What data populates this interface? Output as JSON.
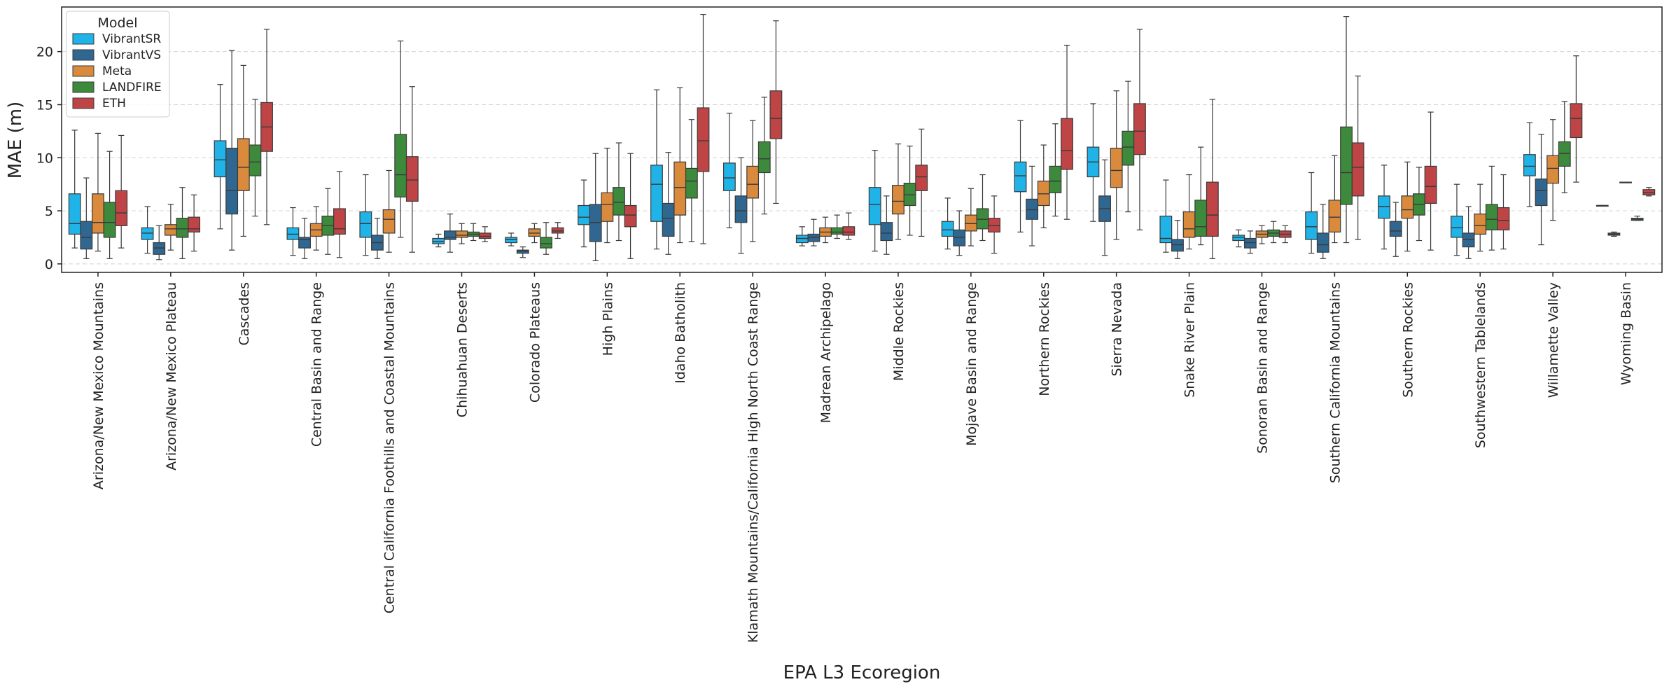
{
  "chart_data": {
    "type": "box",
    "title": "",
    "xlabel": "EPA L3 Ecoregion",
    "ylabel": "MAE (m)",
    "ylim": [
      -0.8,
      24.2
    ],
    "yticks": [
      0,
      5,
      10,
      15,
      20
    ],
    "grid": "horizontal dashed",
    "legend": {
      "title": "Model",
      "position": "top-left"
    },
    "series": [
      {
        "name": "VibrantSR",
        "color": "#1fb3e8"
      },
      {
        "name": "VibrantVS",
        "color": "#2f6791"
      },
      {
        "name": "Meta",
        "color": "#d98a3c"
      },
      {
        "name": "LANDFIRE",
        "color": "#3d8a3c"
      },
      {
        "name": "ETH",
        "color": "#bf4446"
      }
    ],
    "stat_order": [
      "whisker_low",
      "q1",
      "median",
      "q3",
      "whisker_high"
    ],
    "categories": [
      "Arizona/New Mexico Mountains",
      "Arizona/New Mexico Plateau",
      "Cascades",
      "Central Basin and Range",
      "Central California Foothills and Coastal Mountains",
      "Chihuahuan Deserts",
      "Colorado Plateaus",
      "High Plains",
      "Idaho Batholith",
      "Klamath Mountains/California High North Coast Range",
      "Madrean Archipelago",
      "Middle Rockies",
      "Mojave Basin and Range",
      "Northern Rockies",
      "Sierra Nevada",
      "Snake River Plain",
      "Sonoran Basin and Range",
      "Southern California Mountains",
      "Southern Rockies",
      "Southwestern Tablelands",
      "Willamette Valley",
      "Wyoming Basin"
    ],
    "boxes": [
      [
        [
          1.5,
          2.8,
          3.8,
          6.6,
          12.6
        ],
        [
          0.5,
          1.4,
          2.5,
          4.0,
          8.1
        ],
        [
          1.2,
          2.9,
          3.9,
          6.6,
          12.3
        ],
        [
          0.5,
          2.5,
          3.9,
          5.8,
          10.6
        ],
        [
          1.5,
          3.6,
          4.8,
          6.9,
          12.1
        ]
      ],
      [
        [
          1.0,
          2.3,
          2.9,
          3.4,
          5.4
        ],
        [
          0.4,
          0.9,
          1.5,
          2.0,
          3.6
        ],
        [
          1.3,
          2.7,
          3.3,
          3.7,
          5.6
        ],
        [
          0.5,
          2.5,
          3.3,
          4.3,
          7.2
        ],
        [
          1.2,
          3.0,
          3.3,
          4.4,
          6.5
        ]
      ],
      [
        [
          3.3,
          8.2,
          9.8,
          11.6,
          16.9
        ],
        [
          1.3,
          4.7,
          6.9,
          10.9,
          20.1
        ],
        [
          2.6,
          6.9,
          9.1,
          11.8,
          18.7
        ],
        [
          4.5,
          8.3,
          9.6,
          11.2,
          15.5
        ],
        [
          3.7,
          10.6,
          12.9,
          15.2,
          22.1
        ]
      ],
      [
        [
          0.8,
          2.3,
          2.8,
          3.4,
          5.3
        ],
        [
          0.5,
          1.5,
          2.3,
          2.5,
          4.3
        ],
        [
          1.3,
          2.6,
          3.2,
          3.8,
          5.4
        ],
        [
          0.9,
          2.7,
          3.6,
          4.5,
          7.1
        ],
        [
          0.6,
          2.8,
          3.3,
          5.2,
          8.7
        ]
      ],
      [
        [
          0.8,
          2.5,
          3.8,
          4.9,
          8.4
        ],
        [
          0.5,
          1.3,
          2.0,
          2.7,
          4.3
        ],
        [
          1.1,
          2.9,
          4.2,
          5.1,
          8.8
        ],
        [
          2.5,
          6.3,
          8.4,
          12.2,
          21.0
        ],
        [
          1.1,
          5.9,
          7.9,
          10.1,
          16.7
        ]
      ],
      [
        [
          1.6,
          1.9,
          2.1,
          2.4,
          2.8
        ],
        [
          1.1,
          2.3,
          2.5,
          3.1,
          4.7
        ],
        [
          1.9,
          2.5,
          2.7,
          3.1,
          3.8
        ],
        [
          2.2,
          2.6,
          2.8,
          3.0,
          3.8
        ],
        [
          2.1,
          2.4,
          2.6,
          2.9,
          3.5
        ]
      ],
      [
        [
          1.7,
          2.0,
          2.3,
          2.5,
          2.9
        ],
        [
          0.6,
          1.0,
          1.2,
          1.3,
          1.6
        ],
        [
          2.0,
          2.6,
          2.9,
          3.3,
          3.8
        ],
        [
          0.9,
          1.5,
          1.9,
          2.5,
          3.9
        ],
        [
          2.4,
          2.9,
          3.1,
          3.4,
          3.9
        ]
      ],
      [
        [
          1.6,
          3.7,
          4.4,
          5.5,
          7.9
        ],
        [
          0.3,
          2.1,
          3.9,
          5.6,
          10.4
        ],
        [
          2.0,
          4.0,
          5.6,
          6.7,
          10.9
        ],
        [
          2.2,
          4.6,
          5.8,
          7.2,
          11.4
        ],
        [
          0.5,
          3.5,
          4.6,
          5.5,
          10.4
        ]
      ],
      [
        [
          1.4,
          4.0,
          7.5,
          9.3,
          16.4
        ],
        [
          0.9,
          2.6,
          4.3,
          5.7,
          10.5
        ],
        [
          2.0,
          4.6,
          7.2,
          9.6,
          16.6
        ],
        [
          2.1,
          6.2,
          7.8,
          9.0,
          13.6
        ],
        [
          1.9,
          8.7,
          11.6,
          14.7,
          23.5
        ]
      ],
      [
        [
          3.4,
          6.9,
          8.1,
          9.5,
          14.2
        ],
        [
          1.0,
          3.9,
          5.0,
          6.4,
          10.0
        ],
        [
          2.1,
          6.2,
          7.5,
          9.2,
          13.5
        ],
        [
          4.7,
          8.6,
          9.9,
          11.5,
          15.7
        ],
        [
          5.7,
          11.8,
          13.7,
          16.3,
          22.9
        ]
      ],
      [
        [
          1.7,
          2.0,
          2.4,
          2.7,
          3.5
        ],
        [
          1.7,
          2.1,
          2.5,
          2.8,
          4.2
        ],
        [
          2.0,
          2.6,
          3.0,
          3.4,
          4.4
        ],
        [
          2.4,
          2.8,
          3.0,
          3.4,
          4.6
        ],
        [
          2.3,
          2.7,
          3.0,
          3.5,
          4.8
        ]
      ],
      [
        [
          1.2,
          3.7,
          5.6,
          7.2,
          10.7
        ],
        [
          0.9,
          2.2,
          2.9,
          3.9,
          6.4
        ],
        [
          2.3,
          4.7,
          5.9,
          7.4,
          11.3
        ],
        [
          2.7,
          5.5,
          6.5,
          7.6,
          11.1
        ],
        [
          2.6,
          6.9,
          8.2,
          9.3,
          12.7
        ]
      ],
      [
        [
          1.4,
          2.6,
          3.2,
          4.0,
          6.2
        ],
        [
          0.8,
          1.7,
          2.5,
          3.2,
          5.0
        ],
        [
          1.7,
          3.1,
          3.8,
          4.6,
          7.1
        ],
        [
          2.2,
          3.3,
          4.2,
          5.2,
          8.4
        ],
        [
          1.0,
          3.0,
          3.6,
          4.3,
          6.4
        ]
      ],
      [
        [
          3.0,
          6.8,
          8.3,
          9.6,
          13.5
        ],
        [
          1.7,
          4.2,
          5.1,
          6.1,
          9.2
        ],
        [
          3.4,
          5.5,
          6.6,
          7.8,
          11.2
        ],
        [
          4.5,
          6.7,
          7.8,
          9.2,
          13.2
        ],
        [
          4.2,
          8.9,
          10.7,
          13.7,
          20.6
        ]
      ],
      [
        [
          4.0,
          8.2,
          9.6,
          11.0,
          15.1
        ],
        [
          0.8,
          4.0,
          5.2,
          6.4,
          9.8
        ],
        [
          2.3,
          7.2,
          8.8,
          10.9,
          16.3
        ],
        [
          4.9,
          9.3,
          11.0,
          12.5,
          17.2
        ],
        [
          3.2,
          10.3,
          12.5,
          15.1,
          22.1
        ]
      ],
      [
        [
          1.1,
          2.0,
          2.4,
          4.5,
          7.9
        ],
        [
          0.5,
          1.2,
          1.8,
          2.3,
          4.1
        ],
        [
          1.4,
          2.5,
          3.3,
          4.9,
          8.4
        ],
        [
          1.8,
          2.6,
          3.5,
          6.0,
          11.0
        ],
        [
          0.5,
          2.6,
          4.6,
          7.7,
          15.5
        ]
      ],
      [
        [
          1.6,
          2.2,
          2.5,
          2.7,
          3.2
        ],
        [
          1.0,
          1.5,
          2.0,
          2.4,
          3.1
        ],
        [
          1.9,
          2.5,
          2.8,
          3.1,
          3.6
        ],
        [
          2.0,
          2.6,
          2.9,
          3.2,
          4.0
        ],
        [
          2.0,
          2.5,
          2.8,
          3.1,
          3.6
        ]
      ],
      [
        [
          1.0,
          2.3,
          3.5,
          4.9,
          8.6
        ],
        [
          0.5,
          1.1,
          1.8,
          2.9,
          5.6
        ],
        [
          2.0,
          3.0,
          4.4,
          6.0,
          10.2
        ],
        [
          2.0,
          5.6,
          8.6,
          12.9,
          23.3
        ],
        [
          2.3,
          6.4,
          9.1,
          11.4,
          17.7
        ]
      ],
      [
        [
          1.4,
          4.3,
          5.4,
          6.4,
          9.3
        ],
        [
          0.7,
          2.6,
          3.1,
          4.0,
          5.8
        ],
        [
          1.2,
          4.3,
          5.1,
          6.4,
          9.6
        ],
        [
          2.2,
          4.6,
          5.6,
          6.6,
          9.1
        ],
        [
          1.3,
          5.7,
          7.3,
          9.2,
          14.3
        ]
      ],
      [
        [
          0.8,
          2.5,
          3.4,
          4.5,
          7.5
        ],
        [
          0.5,
          1.6,
          2.3,
          2.9,
          5.4
        ],
        [
          1.2,
          2.8,
          3.6,
          4.7,
          7.5
        ],
        [
          1.3,
          3.2,
          4.2,
          5.6,
          9.2
        ],
        [
          1.4,
          3.2,
          4.1,
          5.3,
          8.4
        ]
      ],
      [
        [
          5.4,
          8.3,
          9.2,
          10.3,
          13.3
        ],
        [
          1.8,
          5.5,
          6.9,
          8.0,
          12.2
        ],
        [
          4.1,
          7.6,
          9.0,
          10.2,
          13.6
        ],
        [
          6.7,
          9.2,
          10.4,
          11.5,
          15.3
        ],
        [
          7.7,
          11.9,
          13.7,
          15.1,
          19.6
        ]
      ],
      [
        [
          5.5,
          5.5,
          5.5,
          5.5,
          5.5
        ],
        [
          2.6,
          2.7,
          2.8,
          2.9,
          3.0
        ],
        [
          7.7,
          7.7,
          7.7,
          7.7,
          7.7
        ],
        [
          4.1,
          4.1,
          4.2,
          4.3,
          4.5
        ],
        [
          6.4,
          6.5,
          6.7,
          7.0,
          7.2
        ]
      ]
    ]
  }
}
